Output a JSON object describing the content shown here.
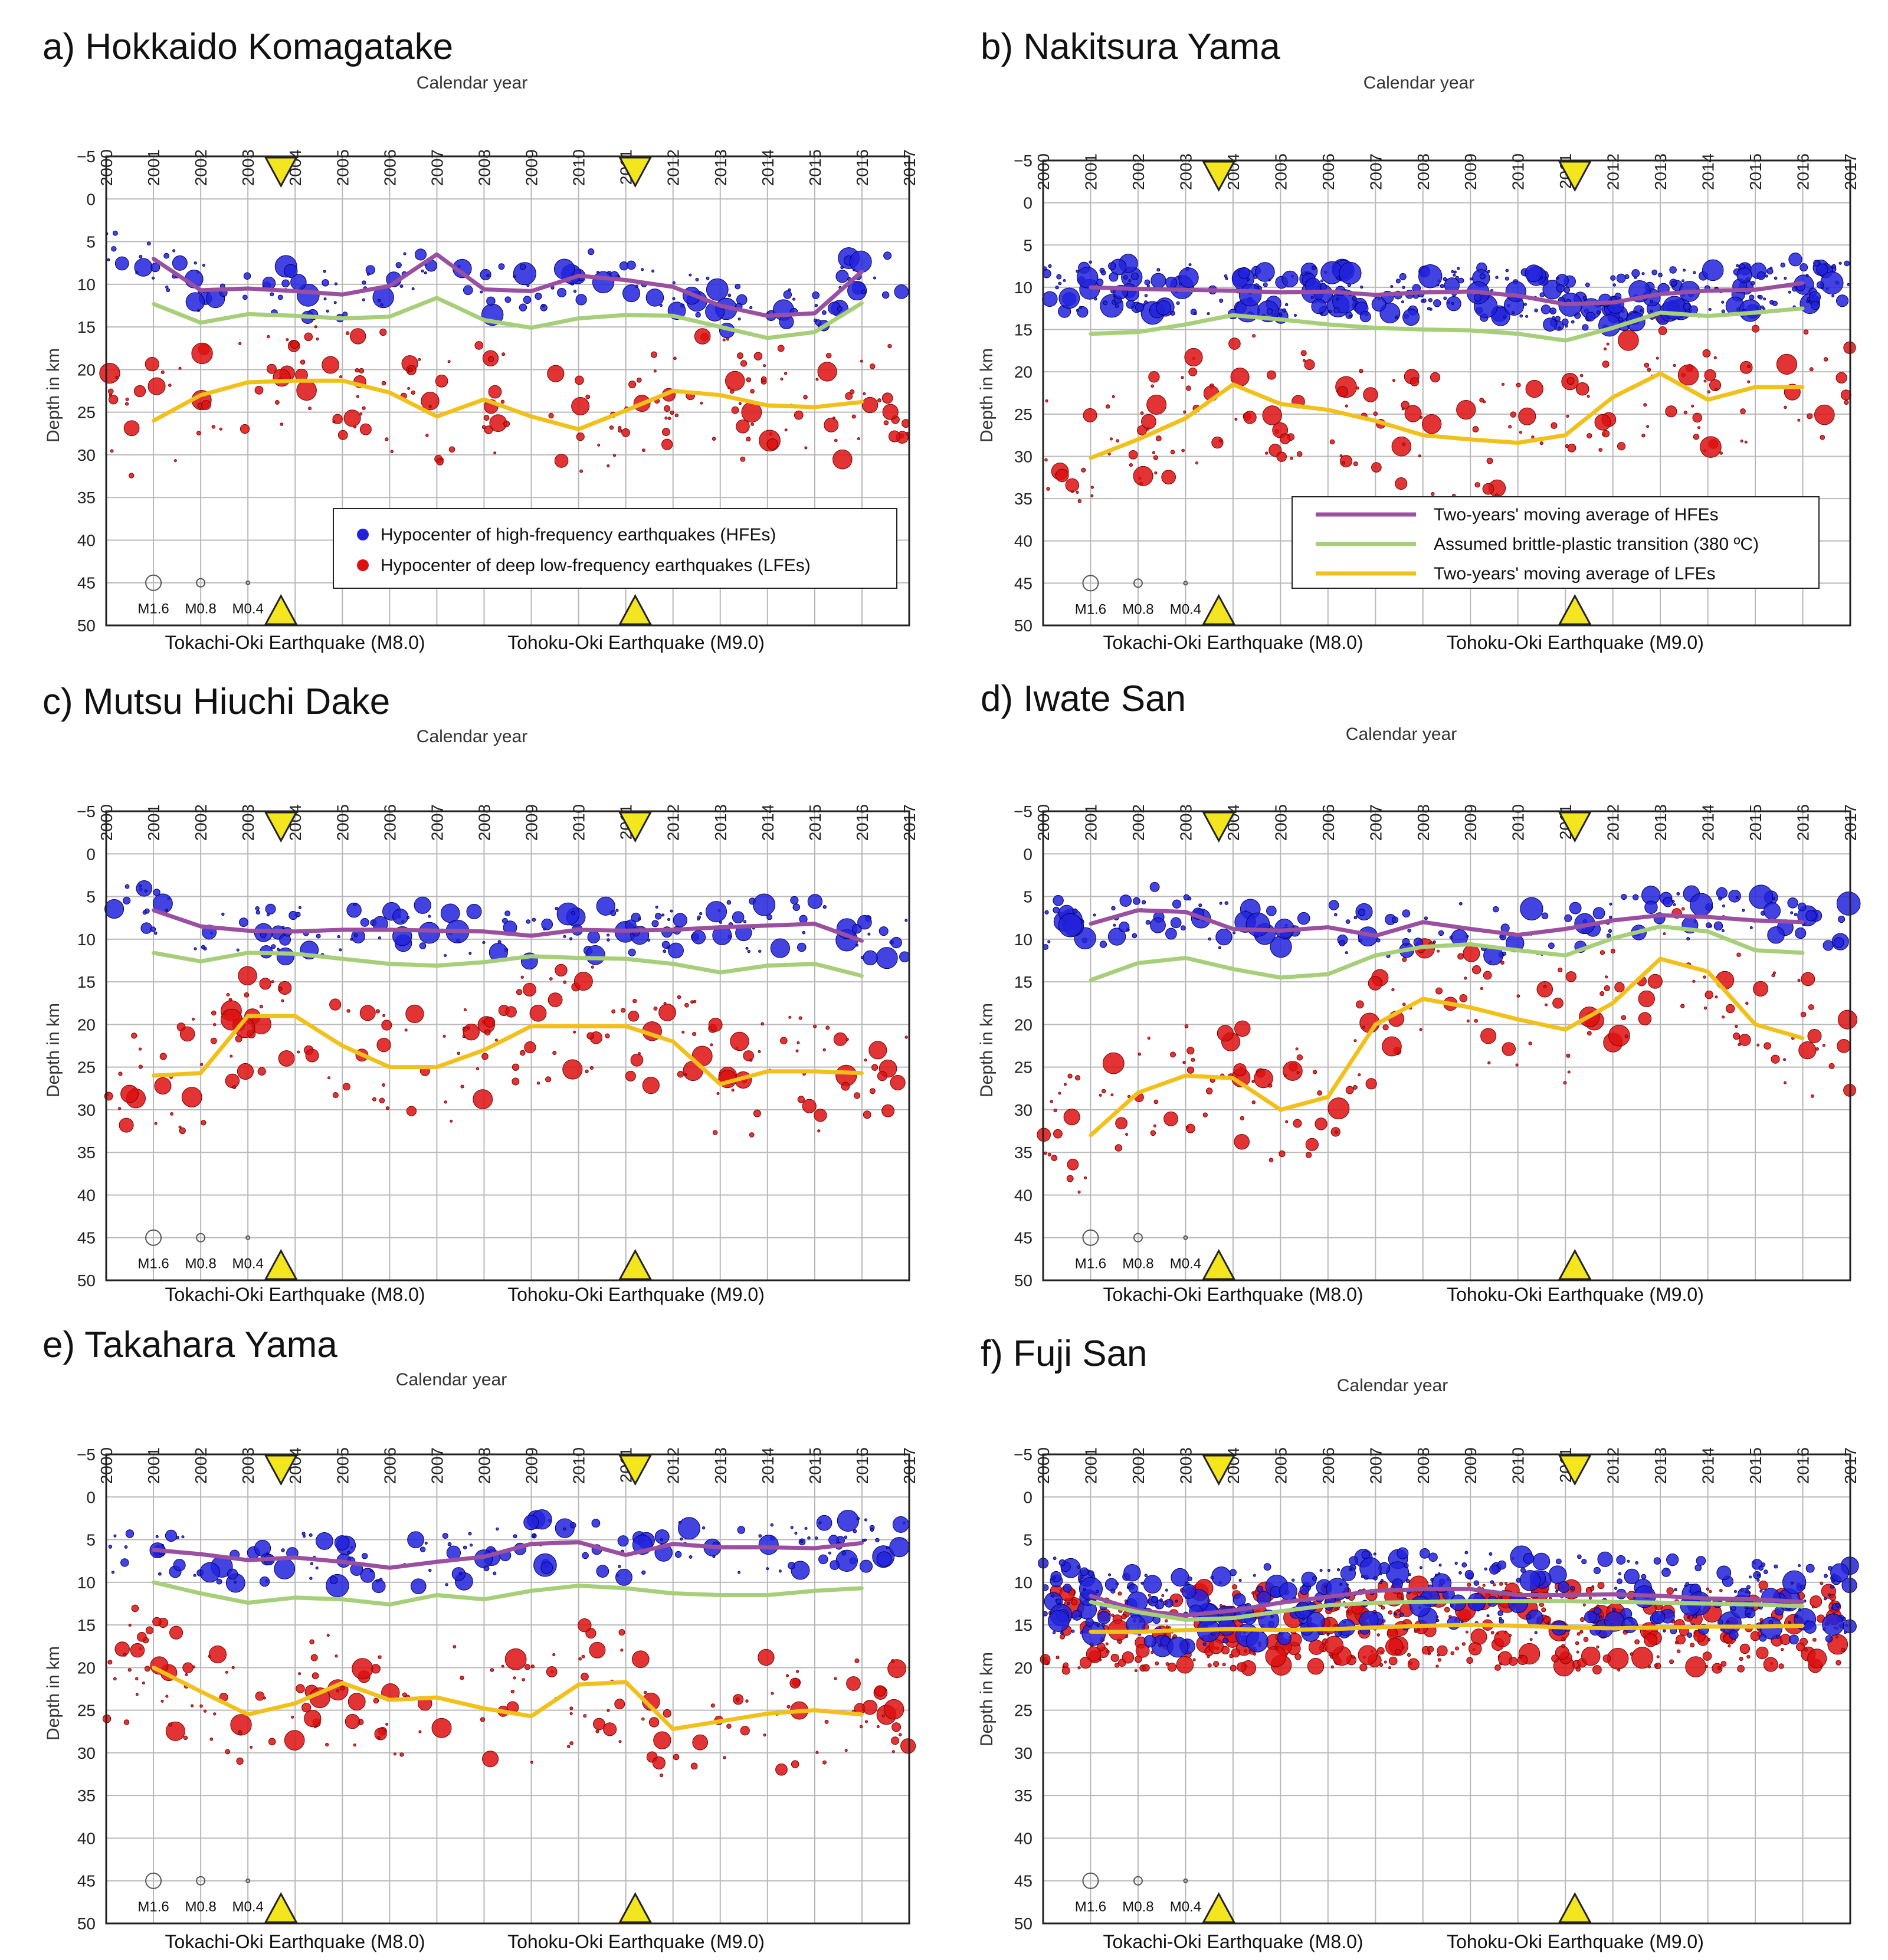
{
  "figure": {
    "x_axis_title": "Calendar year",
    "y_axis_title": "Depth in km",
    "years": [
      "2000",
      "2001",
      "2002",
      "2003",
      "2004",
      "2005",
      "2006",
      "2007",
      "2008",
      "2009",
      "2010",
      "2011",
      "2012",
      "2013",
      "2014",
      "2015",
      "2016",
      "2017"
    ],
    "depth_ticks": [
      "−5",
      "0",
      "5",
      "10",
      "15",
      "20",
      "25",
      "30",
      "35",
      "40",
      "45",
      "50"
    ],
    "event_labels": [
      "Tokachi-Oki Earthquake (M8.0)",
      "Tohoku-Oki Earthquake (M9.0)"
    ],
    "event_years": [
      2003.7,
      2011.2
    ],
    "magnitude_scale": [
      "M1.6",
      "M0.8",
      "M0.4"
    ],
    "colors": {
      "hfe": "#2222dd",
      "lfe": "#dd1111",
      "hfe_avg": "#9b4fa0",
      "transition": "#a7cf7a",
      "lfe_avg": "#f2c01a",
      "marker": "#f4e61e"
    }
  },
  "legend": {
    "hfe": "Hypocenter of high-frequency earthquakes (HFEs)",
    "lfe": "Hypocenter of deep low-frequency earthquakes (LFEs)",
    "hfe_avg": "Two-years' moving average of HFEs",
    "transition": "Assumed brittle-plastic transition (380 ºC)",
    "lfe_avg": "Two-years' moving average of LFEs"
  },
  "chart_data": [
    {
      "type": "scatter",
      "title": "a) Hokkaido Komagatake",
      "xlabel": "Calendar year",
      "ylabel": "Depth in km",
      "xlim": [
        2000,
        2017
      ],
      "ylim": [
        -5,
        50
      ],
      "series": [
        {
          "name": "Two-years' moving average of HFEs",
          "x": [
            2001,
            2002,
            2003,
            2004,
            2005,
            2006,
            2007,
            2008,
            2009,
            2010,
            2011,
            2012,
            2013,
            2014,
            2015,
            2016
          ],
          "values": [
            7,
            10.7,
            10.5,
            10.8,
            11.2,
            10.2,
            6.5,
            10.6,
            10.8,
            9,
            9.5,
            10.3,
            12.5,
            13.7,
            13.4,
            8.5
          ]
        },
        {
          "name": "Assumed brittle-plastic transition (380 ºC)",
          "x": [
            2001,
            2002,
            2003,
            2004,
            2005,
            2006,
            2007,
            2008,
            2009,
            2010,
            2011,
            2012,
            2013,
            2014,
            2015,
            2016
          ],
          "values": [
            12.3,
            14.5,
            13.5,
            13.7,
            14,
            13.8,
            11.6,
            14.2,
            15.1,
            14,
            13.6,
            13.7,
            15,
            16.3,
            15.6,
            12.2
          ]
        },
        {
          "name": "Two-years' moving average of LFEs",
          "x": [
            2001,
            2002,
            2003,
            2004,
            2005,
            2006,
            2007,
            2008,
            2009,
            2010,
            2011,
            2012,
            2013,
            2014,
            2015,
            2016
          ],
          "values": [
            26,
            23,
            21.5,
            21.3,
            21.3,
            22.7,
            25.5,
            23.5,
            25.5,
            27,
            24.8,
            22.5,
            23,
            24.2,
            24.4,
            23.8
          ]
        }
      ]
    },
    {
      "type": "scatter",
      "title": "b) Nakitsura Yama",
      "xlabel": "Calendar year",
      "ylabel": "Depth in km",
      "xlim": [
        2000,
        2017
      ],
      "ylim": [
        -5,
        50
      ],
      "series": [
        {
          "name": "Two-years' moving average of HFEs",
          "x": [
            2001,
            2002,
            2003,
            2004,
            2005,
            2006,
            2007,
            2008,
            2009,
            2010,
            2011,
            2012,
            2013,
            2014,
            2015,
            2016
          ],
          "values": [
            10,
            10.2,
            10.3,
            10.4,
            10.6,
            10.5,
            10.9,
            10.6,
            10.5,
            11,
            12,
            11.8,
            10.8,
            10.4,
            10.3,
            9.5
          ]
        },
        {
          "name": "Assumed brittle-plastic transition (380 ºC)",
          "x": [
            2001,
            2002,
            2003,
            2004,
            2005,
            2006,
            2007,
            2008,
            2009,
            2010,
            2011,
            2012,
            2013,
            2014,
            2015,
            2016
          ],
          "values": [
            15.5,
            15.3,
            14.4,
            13.3,
            13.8,
            14.4,
            14.8,
            15,
            15.1,
            15.5,
            16.3,
            14.8,
            13,
            13.4,
            13,
            12.5
          ]
        },
        {
          "name": "Two-years' moving average of LFEs",
          "x": [
            2001,
            2002,
            2003,
            2004,
            2005,
            2006,
            2007,
            2008,
            2009,
            2010,
            2011,
            2012,
            2013,
            2014,
            2015,
            2016
          ],
          "values": [
            30.2,
            28,
            25.5,
            21.5,
            23.8,
            24.5,
            25.8,
            27.5,
            28,
            28.4,
            27.5,
            23,
            20.2,
            23.3,
            21.8,
            21.8
          ]
        }
      ]
    },
    {
      "type": "scatter",
      "title": "c) Mutsu Hiuchi Dake",
      "xlabel": "Calendar year",
      "ylabel": "Depth in km",
      "xlim": [
        2000,
        2017
      ],
      "ylim": [
        -5,
        50
      ],
      "series": [
        {
          "name": "Two-years' moving average of HFEs",
          "x": [
            2001,
            2002,
            2003,
            2004,
            2005,
            2006,
            2007,
            2008,
            2009,
            2010,
            2011,
            2012,
            2013,
            2014,
            2015,
            2016
          ],
          "values": [
            6.6,
            8.5,
            9,
            9.1,
            8.9,
            8.9,
            9,
            9.1,
            9.6,
            8.9,
            9,
            8.9,
            8.6,
            8.4,
            8.2,
            10.2
          ]
        },
        {
          "name": "Assumed brittle-plastic transition (380 ºC)",
          "x": [
            2001,
            2002,
            2003,
            2004,
            2005,
            2006,
            2007,
            2008,
            2009,
            2010,
            2011,
            2012,
            2013,
            2014,
            2015,
            2016
          ],
          "values": [
            11.6,
            12.6,
            11.6,
            11.7,
            12.3,
            12.9,
            13.1,
            12.7,
            12,
            12.2,
            12.3,
            12.9,
            13.9,
            13.1,
            12.9,
            14.3
          ]
        },
        {
          "name": "Two-years' moving average of LFEs",
          "x": [
            2001,
            2002,
            2003,
            2004,
            2005,
            2006,
            2007,
            2008,
            2009,
            2010,
            2011,
            2012,
            2013,
            2014,
            2015,
            2016
          ],
          "values": [
            26,
            25.7,
            19,
            19,
            22.5,
            25,
            25,
            23,
            20.2,
            20.2,
            20.2,
            22,
            27,
            25.5,
            25.5,
            25.7
          ]
        }
      ]
    },
    {
      "type": "scatter",
      "title": "d) Iwate San",
      "xlabel": "Calendar year",
      "ylabel": "Depth in km",
      "xlim": [
        2000,
        2017
      ],
      "ylim": [
        -5,
        50
      ],
      "series": [
        {
          "name": "Two-years' moving average of HFEs",
          "x": [
            2001,
            2002,
            2003,
            2004,
            2005,
            2006,
            2007,
            2008,
            2009,
            2010,
            2011,
            2012,
            2013,
            2014,
            2015,
            2016
          ],
          "values": [
            8.2,
            6.6,
            6.8,
            8.8,
            9,
            8.6,
            9.6,
            8,
            8.8,
            9.5,
            8.8,
            7.8,
            7.2,
            7.4,
            7.8,
            8
          ]
        },
        {
          "name": "Assumed brittle-plastic transition (380 ºC)",
          "x": [
            2001,
            2002,
            2003,
            2004,
            2005,
            2006,
            2007,
            2008,
            2009,
            2010,
            2011,
            2012,
            2013,
            2014,
            2015,
            2016
          ],
          "values": [
            14.8,
            12.8,
            12.2,
            13.5,
            14.5,
            14.1,
            11.9,
            10.9,
            10.6,
            11.3,
            11.9,
            9.9,
            8.5,
            9.1,
            11.3,
            11.6
          ]
        },
        {
          "name": "Two-years' moving average of LFEs",
          "x": [
            2001,
            2002,
            2003,
            2004,
            2005,
            2006,
            2007,
            2008,
            2009,
            2010,
            2011,
            2012,
            2013,
            2014,
            2015,
            2016
          ],
          "values": [
            33,
            28,
            26,
            26.3,
            30,
            28.5,
            20,
            17,
            18,
            19.4,
            20.6,
            17.5,
            12.3,
            13.8,
            20,
            21.6
          ]
        }
      ]
    },
    {
      "type": "scatter",
      "title": "e) Takahara Yama",
      "xlabel": "Calendar year",
      "ylabel": "Depth in km",
      "xlim": [
        2000,
        2017
      ],
      "ylim": [
        -5,
        50
      ],
      "series": [
        {
          "name": "Two-years' moving average of HFEs",
          "x": [
            2001,
            2002,
            2003,
            2004,
            2005,
            2006,
            2007,
            2008,
            2009,
            2010,
            2011,
            2012,
            2013,
            2014,
            2015,
            2016
          ],
          "values": [
            6.2,
            6.7,
            7.4,
            7.1,
            7.6,
            8.3,
            7.6,
            7,
            5.5,
            5.3,
            6.8,
            5.5,
            5.9,
            5.9,
            6,
            5.4
          ]
        },
        {
          "name": "Assumed brittle-plastic transition (380 ºC)",
          "x": [
            2001,
            2002,
            2003,
            2004,
            2005,
            2006,
            2007,
            2008,
            2009,
            2010,
            2011,
            2012,
            2013,
            2014,
            2015,
            2016
          ],
          "values": [
            10,
            11.3,
            12.4,
            11.8,
            12,
            12.6,
            11.5,
            12,
            11,
            10.4,
            10.7,
            11.3,
            11.5,
            11.5,
            11,
            10.7
          ]
        },
        {
          "name": "Two-years' moving average of LFEs",
          "x": [
            2001,
            2002,
            2003,
            2004,
            2005,
            2006,
            2007,
            2008,
            2009,
            2010,
            2011,
            2012,
            2013,
            2014,
            2015,
            2016
          ],
          "values": [
            20,
            22.8,
            25.5,
            24.2,
            21.8,
            23.8,
            23.5,
            24.8,
            25.7,
            22,
            21.7,
            27.2,
            26.3,
            25.4,
            25,
            25.5
          ]
        }
      ]
    },
    {
      "type": "scatter",
      "title": "f) Fuji San",
      "xlabel": "Calendar year",
      "ylabel": "Depth in km",
      "xlim": [
        2000,
        2017
      ],
      "ylim": [
        -5,
        50
      ],
      "series": [
        {
          "name": "Two-years' moving average of HFEs",
          "x": [
            2001,
            2002,
            2003,
            2004,
            2005,
            2006,
            2007,
            2008,
            2009,
            2010,
            2011,
            2012,
            2013,
            2014,
            2015,
            2016
          ],
          "values": [
            11.6,
            13.3,
            13.9,
            13.3,
            12.4,
            11.7,
            11,
            10.8,
            10.8,
            11.5,
            11.5,
            11.4,
            11.6,
            11.9,
            12,
            12.3
          ]
        },
        {
          "name": "Assumed brittle-plastic transition (380 ºC)",
          "x": [
            2001,
            2002,
            2003,
            2004,
            2005,
            2006,
            2007,
            2008,
            2009,
            2010,
            2011,
            2012,
            2013,
            2014,
            2015,
            2016
          ],
          "values": [
            12.3,
            13.5,
            14.4,
            14.2,
            13.4,
            12.7,
            12.4,
            12.3,
            12.2,
            12.2,
            12.2,
            12.3,
            12.4,
            12.5,
            12.6,
            12.8
          ]
        },
        {
          "name": "Two-years' moving average of LFEs",
          "x": [
            2001,
            2002,
            2003,
            2004,
            2005,
            2006,
            2007,
            2008,
            2009,
            2010,
            2011,
            2012,
            2013,
            2014,
            2015,
            2016
          ],
          "values": [
            15.8,
            15.8,
            15.6,
            15.5,
            15.6,
            15.5,
            15.3,
            15.1,
            15,
            15.1,
            15.3,
            15.4,
            15.3,
            15.2,
            15.2,
            15.1
          ]
        }
      ]
    }
  ]
}
